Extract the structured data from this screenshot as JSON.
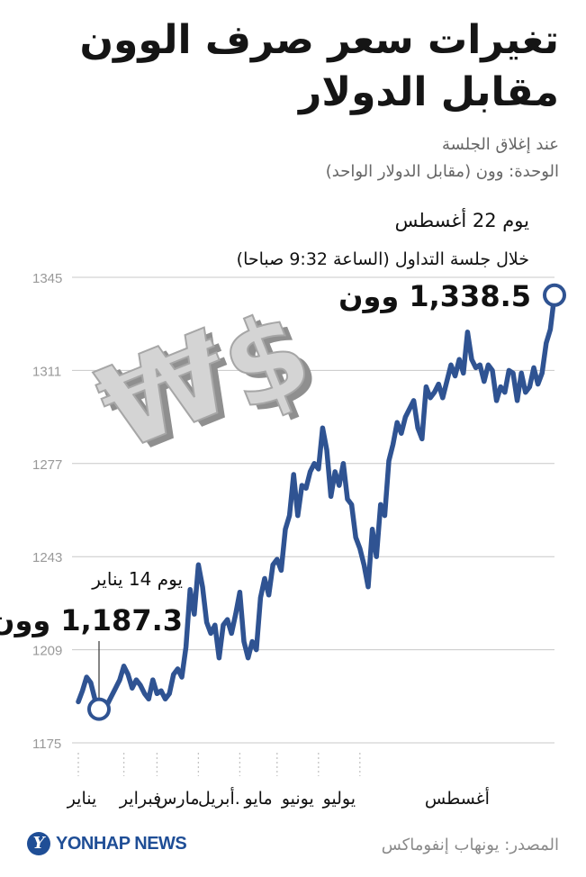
{
  "title_lines": [
    "تغيرات سعر صرف الوون",
    "مقابل الدولار"
  ],
  "subtitle_lines": [
    "عند إغلاق الجلسة",
    "الوحدة: وون (مقابل الدولار الواحد)"
  ],
  "source": "المصدر: يونهاب إنفوماكس",
  "logo": {
    "mark": "Y",
    "text": "YONHAP NEWS"
  },
  "colors": {
    "line": "#2f5392",
    "grid": "#c8c8c8",
    "marker_fill": "#ffffff",
    "axis_text": "#999999"
  },
  "annotations": {
    "start": {
      "line1": "يوم 14 يناير",
      "value": "1,187.3 وون"
    },
    "end": {
      "line1": "يوم 22 أغسطس",
      "line2": "خلال جلسة التداول (الساعة 9:32 صباحا)",
      "value": "1,338.5 وون"
    }
  },
  "illustration": {
    "name": "won-dollar-symbols",
    "won_glyph": "₩",
    "dollar_glyph": "$"
  },
  "chart_data": {
    "type": "line",
    "ylim": [
      1175,
      1345
    ],
    "yticks": [
      1175,
      1209,
      1243,
      1277,
      1311,
      1345
    ],
    "grid": true,
    "month_labels": [
      "يناير",
      "فبراير",
      "مارس",
      ".أبريل",
      "مايو",
      "يونيو",
      "يوليو",
      "أغسطس"
    ],
    "month_starts": [
      0,
      11,
      19,
      29,
      39,
      48,
      58,
      68
    ],
    "series": [
      {
        "values": [
          1190,
          1194,
          1199,
          1197,
          1191,
          1187.3,
          1189,
          1189,
          1192,
          1195,
          1198,
          1203,
          1200,
          1195,
          1198,
          1196,
          1193,
          1191,
          1198,
          1193,
          1194,
          1191,
          1193,
          1200,
          1202,
          1199,
          1210,
          1231,
          1222,
          1240,
          1232,
          1219,
          1215,
          1218,
          1206,
          1218,
          1220,
          1215,
          1222,
          1230,
          1212,
          1206,
          1212,
          1209,
          1228,
          1235,
          1229,
          1240,
          1242,
          1238,
          1253,
          1258,
          1273,
          1258,
          1269,
          1268,
          1274,
          1277,
          1275,
          1290,
          1282,
          1265,
          1274,
          1269,
          1277,
          1264,
          1262,
          1250,
          1246,
          1240,
          1232,
          1253,
          1243,
          1262,
          1258,
          1278,
          1284,
          1292,
          1288,
          1294,
          1297,
          1300,
          1290,
          1286,
          1305,
          1301,
          1303,
          1306,
          1301,
          1307,
          1313,
          1309,
          1315,
          1310,
          1325,
          1315,
          1312,
          1313,
          1307,
          1313,
          1311,
          1300,
          1305,
          1303,
          1311,
          1310,
          1300,
          1310,
          1303,
          1305,
          1312,
          1306,
          1310,
          1321,
          1326,
          1338.5
        ]
      }
    ]
  }
}
